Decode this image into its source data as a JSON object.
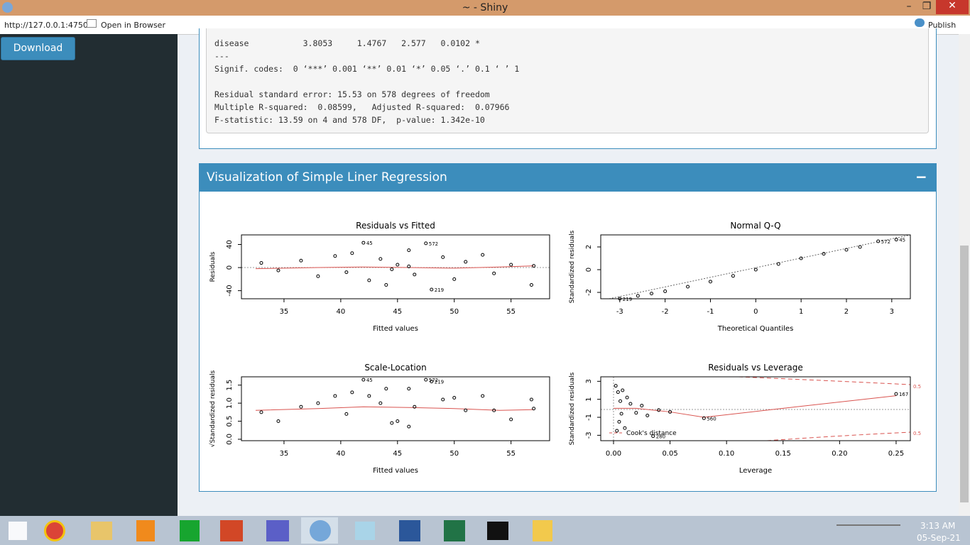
{
  "window": {
    "title": "~ - Shiny",
    "url": "http://127.0.0.1:4750",
    "open_in_browser": "Open in Browser",
    "publish": "Publish"
  },
  "sidebar": {
    "download": "Download"
  },
  "summary_output": {
    "lines": [
      "disease           3.8053     1.4767   2.577   0.0102 *",
      "---",
      "Signif. codes:  0 ‘***’ 0.001 ‘**’ 0.01 ‘*’ 0.05 ‘.’ 0.1 ‘ ’ 1",
      "Residual standard error: 15.53 on 578 degrees of freedom",
      "Multiple R-squared:  0.08599,\tAdjusted R-squared:  0.07966 ",
      "F-statistic: 13.59 on 4 and 578 DF,  p-value: 1.342e-10"
    ]
  },
  "viz_box": {
    "title": "Visualization of Simple Liner Regression",
    "collapse": "−"
  },
  "chart_data": [
    {
      "type": "scatter",
      "title": "Residuals vs Fitted",
      "x_label": "Fitted values",
      "y_label": "Residuals",
      "xlim": [
        31.25,
        58.4
      ],
      "ylim": [
        -54,
        56.6
      ],
      "xticks": [
        35,
        40,
        45,
        50,
        55
      ],
      "yticks": [
        -40,
        0,
        40
      ],
      "x": [
        33,
        34.5,
        36.5,
        38,
        39.5,
        40.5,
        41,
        42,
        42.5,
        43.5,
        44,
        45,
        46,
        46.5,
        47.5,
        48,
        49,
        50,
        51,
        52.5,
        53.5,
        55,
        56.8,
        57,
        44.5,
        46
      ],
      "y": [
        8,
        -5,
        12,
        -15,
        20,
        -8,
        25,
        43,
        -22,
        15,
        -30,
        5,
        30,
        -12,
        42,
        -38,
        18,
        -20,
        10,
        22,
        -10,
        5,
        -30,
        3,
        -3,
        2
      ],
      "labels": [
        null,
        null,
        null,
        null,
        null,
        null,
        null,
        "45",
        null,
        null,
        null,
        null,
        null,
        null,
        "572",
        "219",
        null,
        null,
        null,
        null,
        null,
        null,
        null,
        null,
        null,
        null
      ],
      "smooth": {
        "x": [
          32.5,
          38,
          42,
          46,
          50,
          54,
          57
        ],
        "y": [
          -2,
          0,
          1,
          0,
          -1,
          1,
          3
        ]
      }
    },
    {
      "type": "scatter",
      "title": "Normal Q-Q",
      "x_label": "Theoretical Quantiles",
      "y_label": "Standardized residuals",
      "xlim": [
        -3.42,
        3.41
      ],
      "ylim": [
        -2.56,
        3.06
      ],
      "xticks": [
        -3,
        -2,
        -1,
        0,
        1,
        2,
        3
      ],
      "yticks": [
        -2,
        0,
        2
      ],
      "x": [
        -3,
        -2.6,
        -2.3,
        -2,
        -1.5,
        -1,
        -0.5,
        0,
        0.5,
        1,
        1.5,
        2,
        2.3,
        2.7,
        3.1
      ],
      "y": [
        -2.55,
        -2.3,
        -2.1,
        -1.9,
        -1.5,
        -1.05,
        -0.55,
        0,
        0.5,
        1.0,
        1.4,
        1.75,
        2.0,
        2.5,
        2.65
      ],
      "labels": [
        "219",
        null,
        null,
        null,
        null,
        null,
        null,
        null,
        null,
        null,
        null,
        null,
        null,
        "572",
        "45"
      ]
    },
    {
      "type": "scatter",
      "title": "Scale-Location",
      "x_label": "Fitted values",
      "y_label": "√Standardized residuals",
      "xlim": [
        31.25,
        58.4
      ],
      "ylim": [
        -0.04,
        1.73
      ],
      "xticks": [
        35,
        40,
        45,
        50,
        55
      ],
      "yticks": [
        {
          "value": 0,
          "label": "0.0"
        },
        {
          "value": 0.5,
          "label": "0.5"
        },
        {
          "value": 1,
          "label": "1.0"
        },
        {
          "value": 1.5,
          "label": "1.5"
        }
      ],
      "x": [
        33,
        34.5,
        36.5,
        38,
        39.5,
        40.5,
        41,
        42,
        42.5,
        43.5,
        44,
        45,
        46,
        46.5,
        47.5,
        48,
        49,
        50,
        51,
        52.5,
        53.5,
        55,
        56.8,
        57,
        44.5,
        46
      ],
      "y": [
        0.75,
        0.5,
        0.9,
        1.0,
        1.2,
        0.7,
        1.3,
        1.65,
        1.2,
        1.0,
        1.4,
        0.5,
        1.4,
        0.9,
        1.65,
        1.6,
        1.1,
        1.15,
        0.8,
        1.2,
        0.8,
        0.55,
        1.1,
        0.85,
        0.45,
        0.35
      ],
      "labels": [
        null,
        null,
        null,
        null,
        null,
        null,
        null,
        "45",
        null,
        null,
        null,
        null,
        null,
        null,
        "572",
        "219",
        null,
        null,
        null,
        null,
        null,
        null,
        null,
        null,
        null,
        null
      ],
      "smooth": {
        "x": [
          32.5,
          38,
          42,
          46,
          50,
          54,
          57
        ],
        "y": [
          0.8,
          0.85,
          0.9,
          0.88,
          0.85,
          0.8,
          0.82
        ]
      }
    },
    {
      "type": "scatter",
      "title": "Residuals vs Leverage",
      "x_label": "Leverage",
      "y_label": "Standardized residuals",
      "xlim": [
        -0.0113,
        0.2626
      ],
      "ylim": [
        -3.6,
        3.5
      ],
      "xticks": [
        {
          "value": 0,
          "label": "0.00"
        },
        {
          "value": 0.05,
          "label": "0.05"
        },
        {
          "value": 0.1,
          "label": "0.10"
        },
        {
          "value": 0.15,
          "label": "0.15"
        },
        {
          "value": 0.2,
          "label": "0.20"
        },
        {
          "value": 0.25,
          "label": "0.25"
        }
      ],
      "yticks": [
        -3,
        -1,
        1,
        3
      ],
      "x": [
        0.002,
        0.003,
        0.004,
        0.005,
        0.006,
        0.007,
        0.008,
        0.01,
        0.012,
        0.015,
        0.02,
        0.025,
        0.03,
        0.04,
        0.05,
        0.035,
        0.08,
        0.25
      ],
      "y": [
        2.5,
        -2.5,
        1.8,
        -1.5,
        0.8,
        -0.6,
        2.0,
        -2.2,
        1.2,
        0.5,
        -0.5,
        0.3,
        -0.8,
        -0.2,
        -0.4,
        -3.1,
        -1.1,
        1.6
      ],
      "labels": [
        null,
        null,
        null,
        null,
        null,
        null,
        null,
        null,
        null,
        null,
        null,
        null,
        null,
        null,
        null,
        "280",
        "560",
        "167"
      ],
      "smooth": {
        "x": [
          0,
          0.02,
          0.05,
          0.08,
          0.15,
          0.25
        ],
        "y": [
          0,
          0,
          -0.4,
          -1.0,
          0.0,
          1.4
        ]
      },
      "legend": "Cook's distance",
      "cook_labels": [
        "0.5",
        "0.5"
      ]
    }
  ],
  "taskbar": {
    "time": "3:13 AM",
    "date": "05-Sep-21"
  }
}
